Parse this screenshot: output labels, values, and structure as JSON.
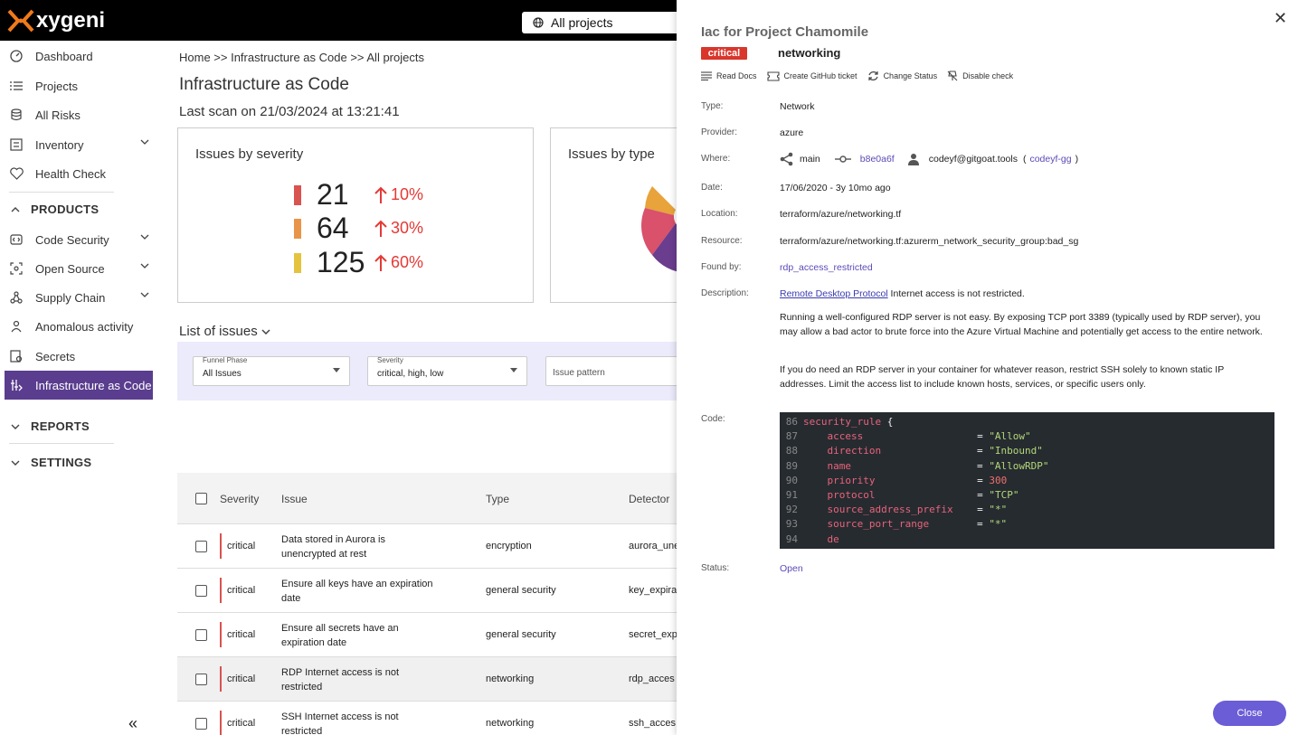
{
  "header": {
    "logo_text": "xygeni",
    "project_selector": "All projects"
  },
  "sidebar": {
    "items": [
      {
        "label": "Dashboard",
        "icon": "dashboard-icon"
      },
      {
        "label": "Projects",
        "icon": "list-icon"
      },
      {
        "label": "All Risks",
        "icon": "risks-icon"
      },
      {
        "label": "Inventory",
        "icon": "inventory-icon"
      },
      {
        "label": "Health Check",
        "icon": "health-icon"
      }
    ],
    "products_label": "PRODUCTS",
    "products": [
      {
        "label": "Code Security",
        "icon": "code-icon"
      },
      {
        "label": "Open Source",
        "icon": "open-source-icon"
      },
      {
        "label": "Supply Chain",
        "icon": "supply-chain-icon"
      },
      {
        "label": "Anomalous activity",
        "icon": "anomaly-icon"
      },
      {
        "label": "Secrets",
        "icon": "secrets-icon"
      },
      {
        "label": "Infrastructure as Code",
        "icon": "iac-icon"
      }
    ],
    "reports_label": "REPORTS",
    "settings_label": "SETTINGS",
    "collapse": "«"
  },
  "main": {
    "breadcrumb": "Home >> Infrastructure as Code >> All projects",
    "title": "Infrastructure as Code",
    "last_scan": "Last scan on 21/03/2024 at 13:21:41",
    "severity_card": {
      "title": "Issues by severity",
      "rows": [
        {
          "count": "21",
          "pct": "10%",
          "color": "#d9534f"
        },
        {
          "count": "64",
          "pct": "30%",
          "color": "#e8954a"
        },
        {
          "count": "125",
          "pct": "60%",
          "color": "#e5c33f"
        }
      ]
    },
    "type_card": {
      "title": "Issues by type"
    },
    "list_title": "List of issues",
    "filters": {
      "funnel_label": "Funnel Phase",
      "funnel_value": "All Issues",
      "severity_label": "Severity",
      "severity_value": "critical, high, low",
      "pattern_placeholder": "Issue pattern"
    },
    "table": {
      "headers": [
        "Severity",
        "Issue",
        "Type",
        "Detector"
      ],
      "rows": [
        {
          "severity": "critical",
          "issue": "Data stored in Aurora is unencrypted at rest",
          "type": "encryption",
          "detector": "aurora_une"
        },
        {
          "severity": "critical",
          "issue": "Ensure all keys have an expiration date",
          "type": "general security",
          "detector": "key_expira"
        },
        {
          "severity": "critical",
          "issue": "Ensure all secrets have an expiration date",
          "type": "general security",
          "detector": "secret_exp"
        },
        {
          "severity": "critical",
          "issue": "RDP Internet access is not restricted",
          "type": "networking",
          "detector": "rdp_acces"
        },
        {
          "severity": "critical",
          "issue": "SSH Internet access is not restricted",
          "type": "networking",
          "detector": "ssh_acces"
        }
      ]
    }
  },
  "drawer": {
    "title": "Iac for Project Chamomile",
    "badge": "critical",
    "category": "networking",
    "actions": [
      "Read Docs",
      "Create GitHub ticket",
      "Change Status",
      "Disable check"
    ],
    "labels": {
      "type": "Type:",
      "provider": "Provider:",
      "where": "Where:",
      "date": "Date:",
      "location": "Location:",
      "resource": "Resource:",
      "found_by": "Found by:",
      "description": "Description:",
      "code": "Code:",
      "status": "Status:"
    },
    "type": "Network",
    "provider": "azure",
    "where": {
      "branch": "main",
      "commit": "b8e0a6f",
      "user": "codeyf@gitgoat.tools",
      "paren_open": "(",
      "handle": "codeyf-gg",
      "paren_close": ")"
    },
    "date": "17/06/2020 - 3y 10mo ago",
    "location": "terraform/azure/networking.tf",
    "resource": "terraform/azure/networking.tf:azurerm_network_security_group:bad_sg",
    "found_by": "rdp_access_restricted",
    "description_link": "Remote Desktop Protocol",
    "description_rest": " Internet access is not restricted.",
    "description_p1": "Running a well-configured RDP server is not easy. By exposing TCP port 3389 (typically used by RDP server), you may allow a bad actor to brute force into the Azure Virtual Machine and potentially get access to the entire network.",
    "description_p2": "If you do need an RDP server in your container for whatever reason, restrict SSH solely to known static IP addresses. Limit the access list to include known hosts, services, or specific users only.",
    "code": [
      {
        "n": "86",
        "key": "security_rule",
        "op": " {",
        "val": "",
        "vt": ""
      },
      {
        "n": "87",
        "key": "    access",
        "op": "                   = ",
        "val": "\"Allow\"",
        "vt": "str"
      },
      {
        "n": "88",
        "key": "    direction",
        "op": "                = ",
        "val": "\"Inbound\"",
        "vt": "str"
      },
      {
        "n": "89",
        "key": "    name",
        "op": "                     = ",
        "val": "\"AllowRDP\"",
        "vt": "str"
      },
      {
        "n": "90",
        "key": "    priority",
        "op": "                 = ",
        "val": "300",
        "vt": "num"
      },
      {
        "n": "91",
        "key": "    protocol",
        "op": "                 = ",
        "val": "\"TCP\"",
        "vt": "str"
      },
      {
        "n": "92",
        "key": "    source_address_prefix",
        "op": "    = ",
        "val": "\"*\"",
        "vt": "str"
      },
      {
        "n": "93",
        "key": "    source_port_range",
        "op": "        = ",
        "val": "\"*\"",
        "vt": "str"
      },
      {
        "n": "94",
        "key": "    de",
        "op": "",
        "val": "",
        "vt": ""
      }
    ],
    "status": "Open",
    "close_button": "Close",
    "close_x": "✕"
  }
}
